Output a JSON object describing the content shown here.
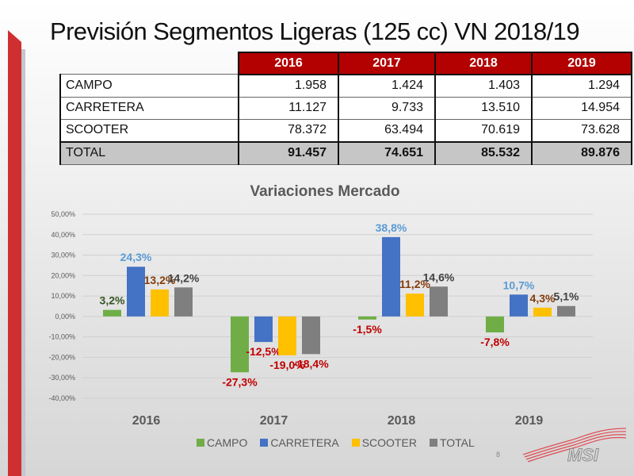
{
  "slide": {
    "title": "Previsión Segmentos Ligeras (125 cc) VN 2018/19",
    "page_number": "8",
    "logo_text": "MSI"
  },
  "table": {
    "years": [
      "2016",
      "2017",
      "2018",
      "2019"
    ],
    "rows": [
      {
        "label": "CAMPO",
        "values": [
          "1.958",
          "1.424",
          "1.403",
          "1.294"
        ]
      },
      {
        "label": "CARRETERA",
        "values": [
          "11.127",
          "9.733",
          "13.510",
          "14.954"
        ]
      },
      {
        "label": "SCOOTER",
        "values": [
          "78.372",
          "63.494",
          "70.619",
          "73.628"
        ]
      }
    ],
    "total": {
      "label": "TOTAL",
      "values": [
        "91.457",
        "74.651",
        "85.532",
        "89.876"
      ]
    }
  },
  "colors": {
    "header_red": "#b30000",
    "campo": "#70ad47",
    "carretera": "#4472c4",
    "scooter": "#ffc000",
    "total": "#7f7f7f",
    "negative_label": "#c00000"
  },
  "chart_data": {
    "type": "bar",
    "title": "Variaciones Mercado",
    "categories": [
      "2016",
      "2017",
      "2018",
      "2019"
    ],
    "series": [
      {
        "name": "CAMPO",
        "values": [
          3.2,
          -27.3,
          -1.5,
          -7.8
        ],
        "labels": [
          "3,2%",
          "-27,3%",
          "-1,5%",
          "-7,8%"
        ]
      },
      {
        "name": "CARRETERA",
        "values": [
          24.3,
          -12.5,
          38.8,
          10.7
        ],
        "labels": [
          "24,3%",
          "-12,5%",
          "38,8%",
          "10,7%"
        ]
      },
      {
        "name": "SCOOTER",
        "values": [
          13.2,
          -19.0,
          11.2,
          4.3
        ],
        "labels": [
          "13,2%",
          "-19,0%",
          "11,2%",
          "4,3%"
        ]
      },
      {
        "name": "TOTAL",
        "values": [
          14.2,
          -18.4,
          14.6,
          5.1
        ],
        "labels": [
          "14,2%",
          "-18,4%",
          "14,6%",
          "5,1%"
        ]
      }
    ],
    "ylim": [
      -40,
      50
    ],
    "yticks": [
      50,
      40,
      30,
      20,
      10,
      0,
      -10,
      -20,
      -30,
      -40
    ],
    "ytick_labels": [
      "50,00%",
      "40,00%",
      "30,00%",
      "20,00%",
      "10,00%",
      "0,00%",
      "-10,00%",
      "-20,00%",
      "-30,00%",
      "-40,00%"
    ],
    "xlabel": "",
    "ylabel": "",
    "grid": true,
    "legend_position": "bottom"
  }
}
